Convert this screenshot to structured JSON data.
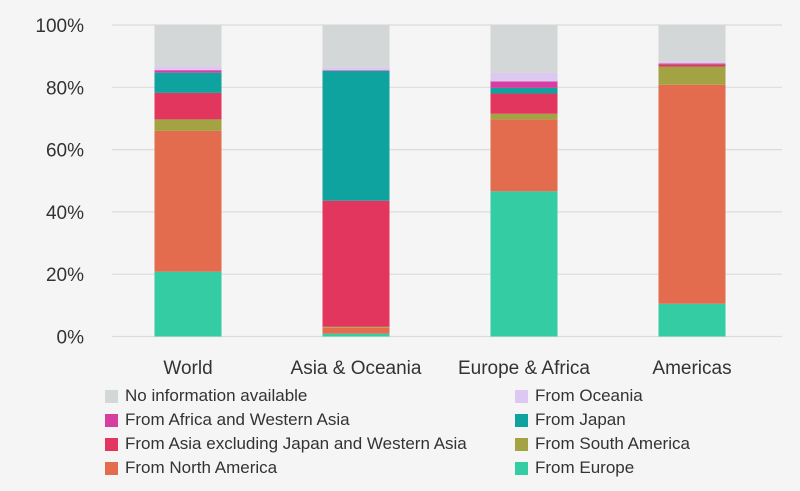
{
  "chart_data": {
    "type": "bar",
    "stacked": true,
    "title": "",
    "xlabel": "",
    "ylabel": "",
    "ylim": [
      0,
      100
    ],
    "yticks": [
      "0%",
      "20%",
      "40%",
      "60%",
      "80%",
      "100%"
    ],
    "grid": true,
    "legend_position": "bottom",
    "categories": [
      "World",
      "Asia & Oceania",
      "Europe & Africa",
      "Americas"
    ],
    "series": [
      {
        "name": "From Europe",
        "color": "#33cca3",
        "values": [
          20.8,
          0.9,
          46.6,
          10.5
        ]
      },
      {
        "name": "From North America",
        "color": "#e36c4e",
        "values": [
          45.2,
          1.9,
          23.1,
          70.3
        ]
      },
      {
        "name": "From South America",
        "color": "#a3a344",
        "values": [
          3.7,
          0.3,
          1.8,
          5.8
        ]
      },
      {
        "name": "From Asia excluding Japan and Western Asia",
        "color": "#e2365e",
        "values": [
          8.5,
          40.5,
          6.5,
          0.8
        ]
      },
      {
        "name": "From Japan",
        "color": "#0fa3a0",
        "values": [
          6.5,
          41.7,
          1.8,
          0.1
        ]
      },
      {
        "name": "From Africa and Western Asia",
        "color": "#d63fa0",
        "values": [
          0.8,
          0.2,
          2.1,
          0.2
        ]
      },
      {
        "name": "From Oceania",
        "color": "#dcc8f0",
        "values": [
          1.3,
          0.9,
          2.8,
          0.5
        ]
      },
      {
        "name": "No information available",
        "color": "#d4d7d8",
        "values": [
          13.2,
          13.6,
          15.3,
          11.8
        ]
      }
    ],
    "legend_order": [
      7,
      6,
      5,
      4,
      3,
      2,
      1,
      0
    ]
  }
}
